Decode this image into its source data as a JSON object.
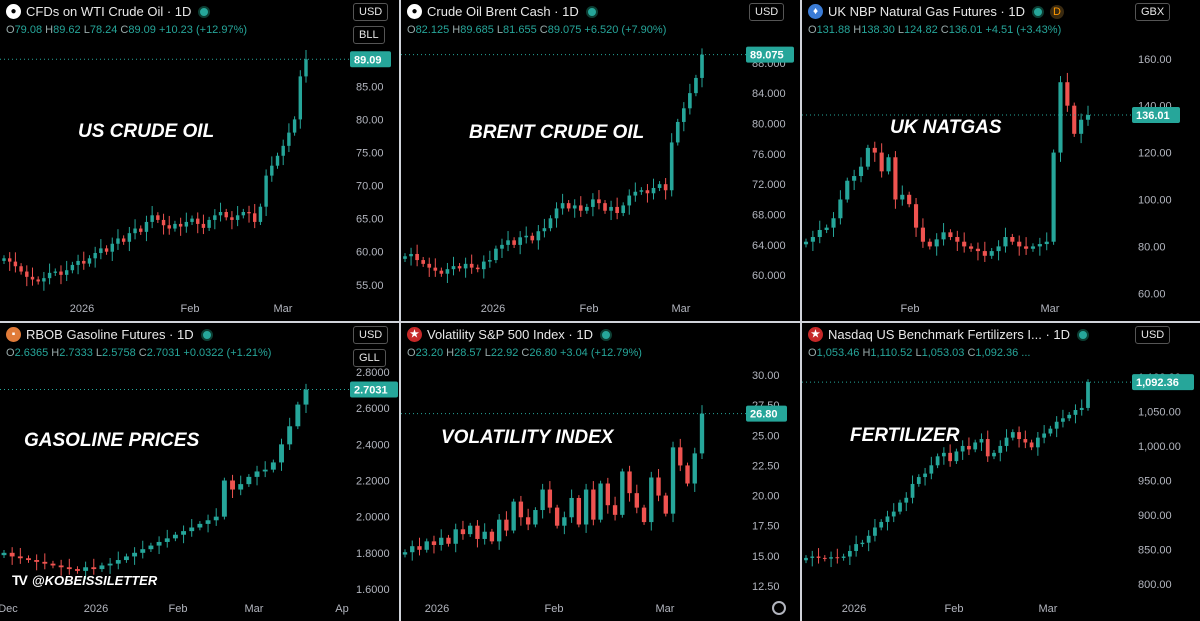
{
  "panels": [
    {
      "id": "wti",
      "title": "CFDs on WTI Crude Oil · 1D",
      "icon": "oil-drop-icon",
      "ohlc": {
        "o": "79.08",
        "h": "89.62",
        "l": "78.24",
        "c": "89.09",
        "chg": "+10.23 (+12.97%)"
      },
      "currency": "USD",
      "unit": "BLL",
      "annotation": "US CRUDE OIL",
      "last": "89.09",
      "x_ticks": [
        "2026",
        "Feb",
        "Mar"
      ],
      "y_ticks": [
        "85.00",
        "80.00",
        "75.00",
        "70.00",
        "65.00",
        "60.00",
        "55.00"
      ]
    },
    {
      "id": "brent",
      "title": "Crude Oil Brent Cash · 1D",
      "icon": "oil-drop-icon",
      "ohlc": {
        "o": "82.125",
        "h": "89.685",
        "l": "81.655",
        "c": "89.075",
        "chg": "+6.520 (+7.90%)"
      },
      "currency": "USD",
      "annotation": "BRENT CRUDE OIL",
      "last": "89.075",
      "x_ticks": [
        "2026",
        "Feb",
        "Mar"
      ],
      "y_ticks": [
        "88.000",
        "84.000",
        "80.000",
        "76.000",
        "72.000",
        "68.000",
        "64.000",
        "60.000"
      ]
    },
    {
      "id": "natgas",
      "title": "UK NBP Natural Gas Futures · 1D",
      "icon": "flame-icon",
      "badge": "D",
      "ohlc": {
        "o": "131.88",
        "h": "138.30",
        "l": "124.82",
        "c": "136.01",
        "chg": "+4.51 (+3.43%)"
      },
      "currency": "GBX",
      "annotation": "UK NATGAS",
      "last": "136.01",
      "x_ticks": [
        "Feb",
        "Mar"
      ],
      "y_ticks": [
        "160.00",
        "140.00",
        "120.00",
        "100.00",
        "80.00",
        "60.00"
      ]
    },
    {
      "id": "gasoline",
      "title": "RBOB Gasoline Futures · 1D",
      "icon": "gas-can-icon",
      "ohlc": {
        "o": "2.6365",
        "h": "2.7333",
        "l": "2.5758",
        "c": "2.7031",
        "chg": "+0.0322 (+1.21%)"
      },
      "currency": "USD",
      "unit": "GLL",
      "annotation": "GASOLINE PRICES",
      "last": "2.7031",
      "x_ticks": [
        "Dec",
        "2026",
        "Feb",
        "Mar",
        "Ap"
      ],
      "y_ticks": [
        "2.8000",
        "2.6000",
        "2.4000",
        "2.2000",
        "2.0000",
        "1.8000",
        "1.6000"
      ]
    },
    {
      "id": "vix",
      "title": "Volatility S&P 500 Index · 1D",
      "icon": "us-flag-icon",
      "ohlc": {
        "o": "23.20",
        "h": "28.57",
        "l": "22.92",
        "c": "26.80",
        "chg": "+3.04 (+12.79%)"
      },
      "annotation": "VOLATILITY INDEX",
      "last": "26.80",
      "x_ticks": [
        "2026",
        "Feb",
        "Mar"
      ],
      "y_ticks": [
        "30.00",
        "27.50",
        "25.00",
        "22.50",
        "20.00",
        "17.50",
        "15.00",
        "12.50"
      ]
    },
    {
      "id": "fert",
      "title": "Nasdaq US Benchmark Fertilizers I... · 1D",
      "icon": "us-flag-icon",
      "ohlc": {
        "o": "1,053.46",
        "h": "1,110.52",
        "l": "1,053.03",
        "c": "1,092.36",
        "chg": "..."
      },
      "currency": "USD",
      "annotation": "FERTILIZER",
      "last": "1,092.36",
      "x_ticks": [
        "2026",
        "Feb",
        "Mar"
      ],
      "y_ticks": [
        "1,100.00",
        "1,050.00",
        "1,000.00",
        "950.00",
        "900.00",
        "850.00",
        "800.00"
      ]
    }
  ],
  "brand": "@KOBEISSILETTER",
  "colors": {
    "up": "#26a69a",
    "down": "#ef5350",
    "bg": "#000000",
    "grid_sep": "#d0d3da"
  },
  "chart_data": [
    {
      "type": "candlestick",
      "title": "CFDs on WTI Crude Oil · 1D",
      "ylim": [
        53,
        92
      ],
      "close": [
        59,
        58.5,
        57.8,
        57,
        56.2,
        55.8,
        55.5,
        56,
        56.8,
        57,
        56.5,
        57.2,
        58,
        58.6,
        58.2,
        59,
        59.8,
        60.5,
        60,
        61.2,
        62,
        61.5,
        62.8,
        63.5,
        63,
        64.5,
        65.5,
        64.8,
        64,
        63.5,
        64.2,
        63.8,
        64.5,
        65,
        64.2,
        63.6,
        64.8,
        65.5,
        66,
        65.2,
        64.8,
        65.5,
        66,
        65.8,
        64.5,
        66.8,
        71.5,
        73,
        74.5,
        76,
        78,
        80,
        86.5,
        89.09
      ]
    },
    {
      "type": "candlestick",
      "title": "Crude Oil Brent Cash · 1D",
      "ylim": [
        57,
        91
      ],
      "close": [
        62.5,
        62.8,
        62,
        61.5,
        61,
        60.6,
        60.2,
        60.8,
        61.2,
        60.9,
        61.5,
        61,
        60.8,
        61.8,
        62,
        63.5,
        64,
        64.6,
        64,
        65,
        65.2,
        64.6,
        65.8,
        66.2,
        67.5,
        68.8,
        69.5,
        68.8,
        69.2,
        68.5,
        69,
        70,
        69.5,
        68.5,
        69,
        68.2,
        69.2,
        70.5,
        71,
        71.2,
        70.8,
        71.5,
        72,
        71.2,
        77.5,
        80.2,
        82,
        84,
        86,
        89.075
      ]
    },
    {
      "type": "candlestick",
      "title": "UK NBP Natural Gas Futures · 1D",
      "ylim": [
        58,
        168
      ],
      "close": [
        82,
        84,
        87,
        88,
        92,
        100,
        108,
        110,
        114,
        122,
        120,
        112,
        118,
        100,
        102,
        98,
        88,
        82,
        80,
        83,
        86,
        84,
        82,
        80,
        79,
        78,
        76,
        78,
        80,
        84,
        82,
        80,
        79,
        80,
        81,
        82,
        120,
        150,
        140,
        128,
        134,
        136.01
      ]
    },
    {
      "type": "candlestick",
      "title": "RBOB Gasoline Futures · 1D",
      "ylim": [
        1.55,
        2.85
      ],
      "close": [
        1.8,
        1.78,
        1.77,
        1.76,
        1.75,
        1.74,
        1.73,
        1.72,
        1.71,
        1.7,
        1.72,
        1.71,
        1.73,
        1.74,
        1.76,
        1.78,
        1.8,
        1.82,
        1.84,
        1.86,
        1.88,
        1.9,
        1.92,
        1.94,
        1.96,
        1.98,
        2.0,
        2.2,
        2.15,
        2.18,
        2.22,
        2.25,
        2.26,
        2.3,
        2.4,
        2.5,
        2.62,
        2.7031
      ]
    },
    {
      "type": "candlestick",
      "title": "Volatility S&P 500 Index · 1D",
      "ylim": [
        11.5,
        31
      ],
      "close": [
        15.3,
        15.8,
        15.5,
        16.2,
        15.9,
        16.5,
        16.0,
        17.2,
        16.8,
        17.5,
        16.4,
        17.0,
        16.2,
        18.0,
        17.1,
        19.5,
        18.2,
        17.6,
        18.8,
        20.5,
        19.0,
        17.5,
        18.2,
        19.8,
        17.6,
        20.5,
        18.0,
        21.0,
        19.2,
        18.4,
        22.0,
        20.2,
        19.0,
        17.8,
        21.5,
        20.0,
        18.5,
        24.0,
        22.5,
        21.0,
        23.5,
        26.8
      ]
    },
    {
      "type": "candlestick",
      "title": "Nasdaq US Benchmark Fertilizers I... · 1D",
      "ylim": [
        780,
        1120
      ],
      "close": [
        838,
        840,
        838,
        837,
        839,
        838,
        840,
        848,
        858,
        860,
        870,
        882,
        890,
        898,
        905,
        918,
        925,
        945,
        955,
        960,
        972,
        985,
        990,
        978,
        992,
        1000,
        995,
        1005,
        1010,
        985,
        990,
        1000,
        1012,
        1020,
        1010,
        1005,
        998,
        1012,
        1018,
        1025,
        1035,
        1040,
        1045,
        1052,
        1055,
        1092.36
      ]
    }
  ]
}
